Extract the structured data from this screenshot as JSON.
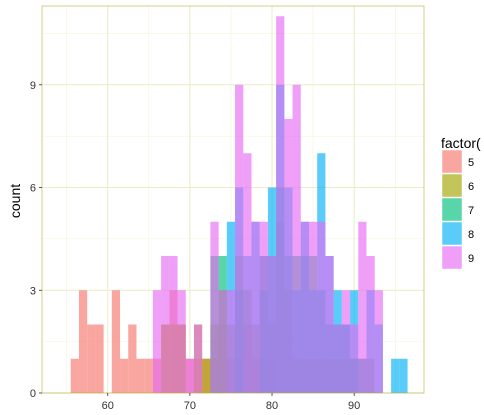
{
  "chart_data": {
    "type": "histogram",
    "title": "",
    "xlabel": "",
    "ylabel": "count",
    "xlim": [
      52,
      98.5
    ],
    "ylim": [
      0,
      11.3
    ],
    "x_ticks": [
      60,
      70,
      80,
      90
    ],
    "y_ticks": [
      0,
      3,
      6,
      9
    ],
    "grid": true,
    "bin_width": 1,
    "stacking": "overlaid",
    "bar_opacity": 0.65,
    "legend": {
      "title": "factor(",
      "position": "right",
      "items": [
        {
          "label": "5",
          "color": "#F8766D"
        },
        {
          "label": "6",
          "color": "#A3A500"
        },
        {
          "label": "7",
          "color": "#00BF7D"
        },
        {
          "label": "8",
          "color": "#00B0F6"
        },
        {
          "label": "9",
          "color": "#E76BF3"
        }
      ]
    },
    "series": [
      {
        "name": "5",
        "color": "#F8766D",
        "bins": [
          [
            56,
            1
          ],
          [
            57,
            3
          ],
          [
            58,
            2
          ],
          [
            59,
            2
          ],
          [
            61,
            3
          ],
          [
            62,
            1
          ],
          [
            63,
            2
          ],
          [
            64,
            1
          ],
          [
            65,
            1
          ],
          [
            66,
            1
          ],
          [
            67,
            2
          ],
          [
            68,
            3
          ],
          [
            69,
            2
          ],
          [
            70,
            1
          ],
          [
            71,
            1
          ],
          [
            72,
            1
          ],
          [
            73,
            1
          ],
          [
            74,
            2
          ],
          [
            75,
            1
          ],
          [
            76,
            1
          ],
          [
            77,
            2
          ],
          [
            78,
            1
          ],
          [
            79,
            1
          ],
          [
            80,
            1
          ]
        ]
      },
      {
        "name": "6",
        "color": "#A3A500",
        "bins": [
          [
            67,
            2
          ],
          [
            68,
            2
          ],
          [
            69,
            2
          ],
          [
            71,
            2
          ],
          [
            72,
            1
          ],
          [
            73,
            2
          ],
          [
            74,
            3
          ],
          [
            75,
            2
          ],
          [
            76,
            4
          ],
          [
            77,
            3
          ],
          [
            78,
            2
          ],
          [
            79,
            4
          ],
          [
            80,
            2
          ],
          [
            81,
            5
          ],
          [
            82,
            3
          ],
          [
            83,
            1
          ],
          [
            84,
            1
          ],
          [
            85,
            1
          ],
          [
            86,
            1
          ],
          [
            87,
            1
          ],
          [
            88,
            1
          ],
          [
            89,
            1
          ],
          [
            90,
            1
          ],
          [
            91,
            1
          ],
          [
            92,
            1
          ]
        ]
      },
      {
        "name": "7",
        "color": "#00BF7D",
        "bins": [
          [
            73,
            4
          ],
          [
            74,
            4
          ],
          [
            76,
            3
          ],
          [
            79,
            3
          ],
          [
            80,
            4
          ],
          [
            81,
            6
          ],
          [
            82,
            4
          ],
          [
            83,
            4
          ],
          [
            84,
            4
          ],
          [
            85,
            4
          ],
          [
            86,
            3
          ],
          [
            87,
            2
          ],
          [
            88,
            2
          ],
          [
            89,
            2
          ],
          [
            90,
            1
          ]
        ]
      },
      {
        "name": "8",
        "color": "#00B0F6",
        "bins": [
          [
            75,
            5
          ],
          [
            76,
            6
          ],
          [
            77,
            4
          ],
          [
            78,
            5
          ],
          [
            79,
            4
          ],
          [
            80,
            6
          ],
          [
            81,
            9
          ],
          [
            82,
            6
          ],
          [
            83,
            3
          ],
          [
            84,
            5
          ],
          [
            85,
            3
          ],
          [
            86,
            7
          ],
          [
            87,
            4
          ],
          [
            88,
            3
          ],
          [
            89,
            2
          ],
          [
            90,
            3
          ],
          [
            91,
            1
          ],
          [
            92,
            3
          ],
          [
            93,
            2
          ],
          [
            95,
            1
          ],
          [
            96,
            1
          ]
        ]
      },
      {
        "name": "9",
        "color": "#E76BF3",
        "bins": [
          [
            66,
            3
          ],
          [
            67,
            4
          ],
          [
            68,
            4
          ],
          [
            69,
            3
          ],
          [
            70,
            1
          ],
          [
            71,
            2
          ],
          [
            73,
            5
          ],
          [
            74,
            3
          ],
          [
            75,
            3
          ],
          [
            76,
            9
          ],
          [
            77,
            7
          ],
          [
            78,
            5
          ],
          [
            79,
            5
          ],
          [
            80,
            4
          ],
          [
            81,
            11
          ],
          [
            82,
            8
          ],
          [
            83,
            9
          ],
          [
            84,
            5
          ],
          [
            85,
            5
          ],
          [
            86,
            5
          ],
          [
            87,
            4
          ],
          [
            88,
            2
          ],
          [
            89,
            3
          ],
          [
            90,
            2
          ],
          [
            91,
            5
          ],
          [
            92,
            4
          ],
          [
            93,
            3
          ]
        ]
      }
    ]
  }
}
